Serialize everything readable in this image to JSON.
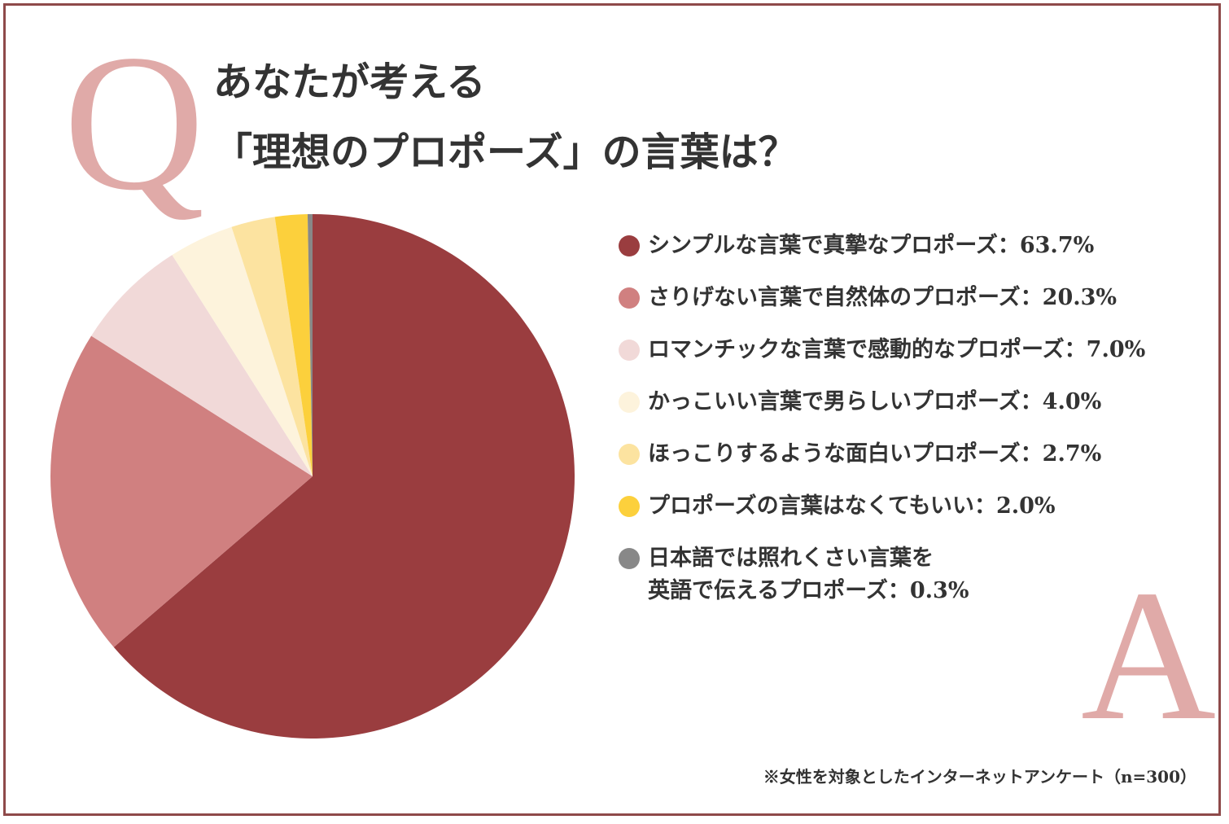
{
  "question_label": "Q",
  "answer_label": "A",
  "footnote": "※女性を対象としたインターネットアンケート（n=300）",
  "chart_data": {
    "type": "pie",
    "title": "あなたが考える\n「理想のプロポーズ」の言葉は？",
    "categories": [
      "シンプルな言葉で真摯なプロポーズ：",
      "さりげない言葉で自然体のプロポーズ：",
      "ロマンチックな言葉で感動的なプロポーズ：",
      "かっこいい言葉で男らしいプロポーズ：",
      "ほっこりするような面白いプロポーズ：",
      "プロポーズの言葉はなくてもいい：",
      "日本語では照れくさい言葉を\n英語で伝えるプロポーズ："
    ],
    "values": [
      63.7,
      20.3,
      7.0,
      4.0,
      2.7,
      2.0,
      0.3
    ],
    "value_labels": [
      "63.7%",
      "20.3%",
      "7.0%",
      "4.0%",
      "2.7%",
      "2.0%",
      "0.3%"
    ],
    "colors": [
      "#9a3d3f",
      "#d08080",
      "#f1d9d8",
      "#fdf3dc",
      "#fce3a0",
      "#fcd03c",
      "#888888"
    ]
  }
}
